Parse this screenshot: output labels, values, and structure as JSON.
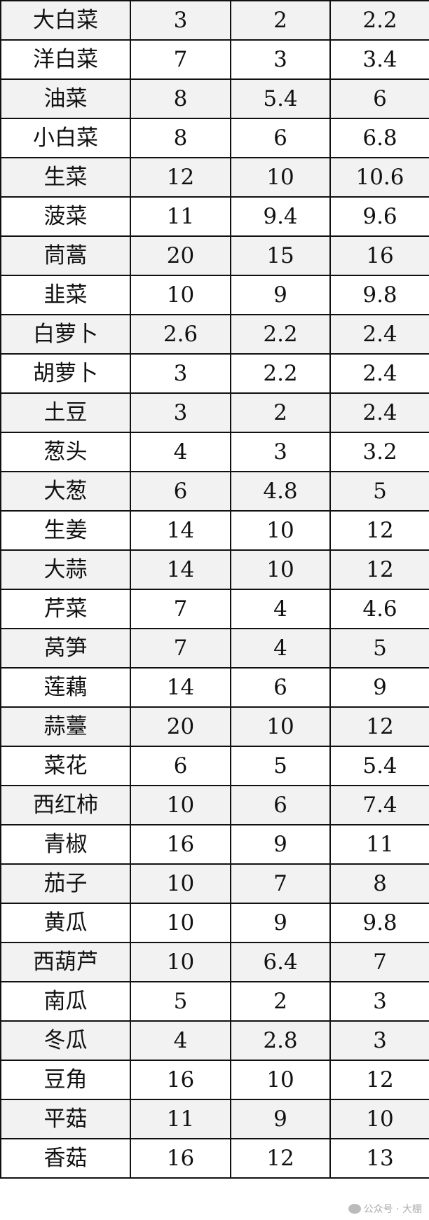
{
  "rows": [
    [
      "大白菜",
      "3",
      "2",
      "2.2"
    ],
    [
      "洋白菜",
      "7",
      "3",
      "3.4"
    ],
    [
      "油菜",
      "8",
      "5.4",
      "6"
    ],
    [
      "小白菜",
      "8",
      "6",
      "6.8"
    ],
    [
      "生菜",
      "12",
      "10",
      "10.6"
    ],
    [
      "菠菜",
      "11",
      "9.4",
      "9.6"
    ],
    [
      "茼蒿",
      "20",
      "15",
      "16"
    ],
    [
      "韭菜",
      "10",
      "9",
      "9.8"
    ],
    [
      "白萝卜",
      "2.6",
      "2.2",
      "2.4"
    ],
    [
      "胡萝卜",
      "3",
      "2.2",
      "2.4"
    ],
    [
      "土豆",
      "3",
      "2",
      "2.4"
    ],
    [
      "葱头",
      "4",
      "3",
      "3.2"
    ],
    [
      "大葱",
      "6",
      "4.8",
      "5"
    ],
    [
      "生姜",
      "14",
      "10",
      "12"
    ],
    [
      "大蒜",
      "14",
      "10",
      "12"
    ],
    [
      "芹菜",
      "7",
      "4",
      "4.6"
    ],
    [
      "莴笋",
      "7",
      "4",
      "5"
    ],
    [
      "莲藕",
      "14",
      "6",
      "9"
    ],
    [
      "蒜薹",
      "20",
      "10",
      "12"
    ],
    [
      "菜花",
      "6",
      "5",
      "5.4"
    ],
    [
      "西红柿",
      "10",
      "6",
      "7.4"
    ],
    [
      "青椒",
      "16",
      "9",
      "11"
    ],
    [
      "茄子",
      "10",
      "7",
      "8"
    ],
    [
      "黄瓜",
      "10",
      "9",
      "9.8"
    ],
    [
      "西葫芦",
      "10",
      "6.4",
      "7"
    ],
    [
      "南瓜",
      "5",
      "2",
      "3"
    ],
    [
      "冬瓜",
      "4",
      "2.8",
      "3"
    ],
    [
      "豆角",
      "16",
      "10",
      "12"
    ],
    [
      "平菇",
      "11",
      "9",
      "10"
    ],
    [
      "香菇",
      "16",
      "12",
      "13"
    ]
  ],
  "watermark": "公众号 · 大棚",
  "colors": {
    "row_shade": "#f2f2f2",
    "border": "#111111"
  }
}
